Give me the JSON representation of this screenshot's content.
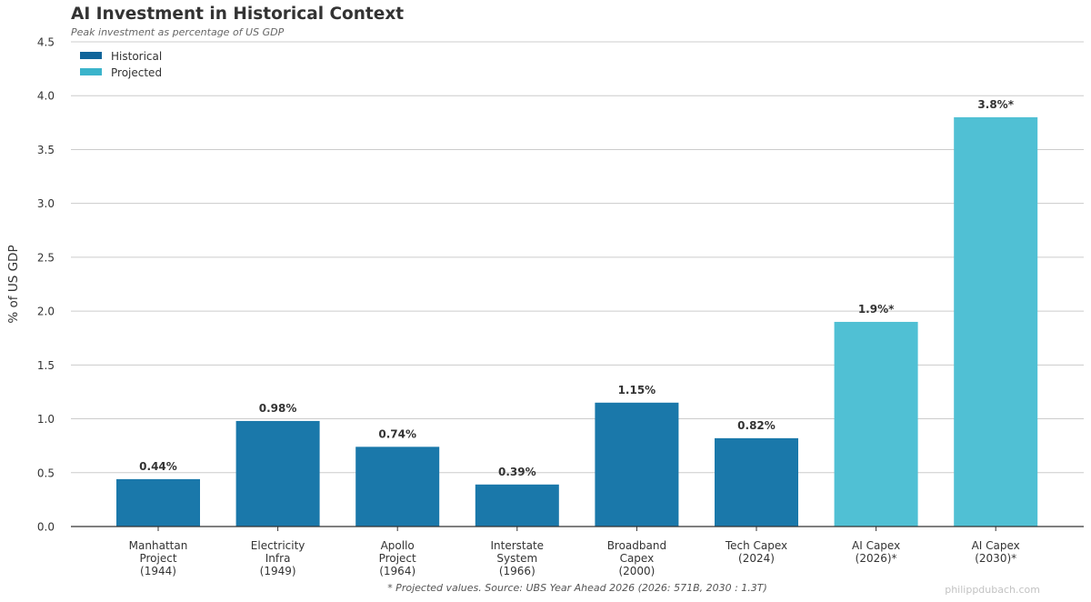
{
  "title": "AI Investment in Historical Context",
  "subtitle": "Peak investment as percentage of US GDP",
  "footnote": "* Projected values. Source: UBS Year Ahead 2026 (2026: 571B, 2030 : 1.3T)",
  "watermark": "philippdubach.com",
  "colors": {
    "historical": "#1a78aa",
    "projected": "#50c0d4",
    "legend_historical": "#11659a",
    "legend_projected": "#3bb4cb",
    "grid": "#cccccc",
    "axis": "#333333"
  },
  "chart_data": {
    "type": "bar",
    "ylabel": "% of US GDP",
    "xlabel": "",
    "ylim": [
      0,
      4.5
    ],
    "yticks": [
      "0.0",
      "0.5",
      "1.0",
      "1.5",
      "2.0",
      "2.5",
      "3.0",
      "3.5",
      "4.0",
      "4.5"
    ],
    "grid": true,
    "legend_position": "top-left",
    "legend": [
      {
        "name": "Historical",
        "color_key": "legend_historical"
      },
      {
        "name": "Projected",
        "color_key": "legend_projected"
      }
    ],
    "categories": [
      [
        "Manhattan",
        "Project",
        "(1944)"
      ],
      [
        "Electricity",
        "Infra",
        "(1949)"
      ],
      [
        "Apollo",
        "Project",
        "(1964)"
      ],
      [
        "Interstate",
        "System",
        "(1966)"
      ],
      [
        "Broadband",
        "Capex",
        "(2000)"
      ],
      [
        "Tech Capex",
        "(2024)"
      ],
      [
        "AI Capex",
        "(2026)*"
      ],
      [
        "AI Capex",
        "(2030)*"
      ]
    ],
    "values": [
      0.44,
      0.98,
      0.74,
      0.39,
      1.15,
      0.82,
      1.9,
      3.8
    ],
    "data_labels": [
      "0.44%",
      "0.98%",
      "0.74%",
      "0.39%",
      "1.15%",
      "0.82%",
      "1.9%*",
      "3.8%*"
    ],
    "series_type": [
      "historical",
      "historical",
      "historical",
      "historical",
      "historical",
      "historical",
      "projected",
      "projected"
    ]
  }
}
